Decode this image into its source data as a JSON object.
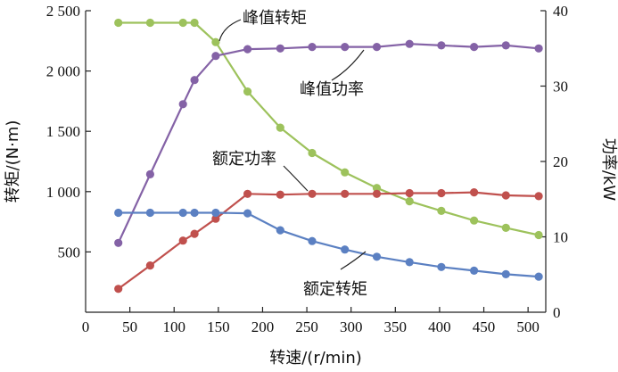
{
  "chart_data": {
    "type": "line",
    "xlabel": "转速/(r/min)",
    "ylabel_left": "转矩/(N·m)",
    "ylabel_right": "功率/kW",
    "xlim": [
      0,
      520
    ],
    "ylim_left": [
      0,
      2500
    ],
    "ylim_right": [
      0,
      40
    ],
    "x_ticks": [
      0,
      50,
      100,
      150,
      200,
      250,
      300,
      350,
      400,
      450,
      500
    ],
    "y_left_ticks": [
      500,
      1000,
      1500,
      2000,
      2500
    ],
    "y_left_tick_labels": [
      "500",
      "1 000",
      "1 500",
      "2 000",
      "2 500"
    ],
    "y_right_ticks": [
      0,
      10,
      20,
      30,
      40
    ],
    "grid": false,
    "series": [
      {
        "name": "峰值转矩",
        "axis": "left",
        "color": "#9dc25c",
        "x": [
          37,
          73,
          110,
          123,
          147,
          183,
          220,
          256,
          293,
          329,
          366,
          402,
          439,
          475,
          512
        ],
        "values": [
          2400,
          2400,
          2400,
          2400,
          2240,
          1830,
          1530,
          1320,
          1160,
          1030,
          920,
          840,
          760,
          700,
          640
        ]
      },
      {
        "name": "峰值功率",
        "axis": "right",
        "color": "#8462a6",
        "x": [
          37,
          73,
          110,
          123,
          147,
          183,
          220,
          256,
          293,
          329,
          366,
          402,
          439,
          475,
          512
        ],
        "values": [
          9.2,
          18.3,
          27.6,
          30.8,
          34.0,
          34.9,
          35.0,
          35.2,
          35.2,
          35.2,
          35.6,
          35.4,
          35.2,
          35.4,
          35.0
        ]
      },
      {
        "name": "额定功率",
        "axis": "right",
        "color": "#c0504d",
        "x": [
          37,
          73,
          110,
          123,
          147,
          183,
          220,
          256,
          293,
          329,
          366,
          402,
          439,
          475,
          512
        ],
        "values": [
          3.1,
          6.2,
          9.5,
          10.4,
          12.4,
          15.7,
          15.6,
          15.7,
          15.7,
          15.7,
          15.8,
          15.8,
          15.9,
          15.5,
          15.4
        ]
      },
      {
        "name": "额定转矩",
        "axis": "left",
        "color": "#5b80c2",
        "x": [
          37,
          73,
          110,
          123,
          147,
          183,
          220,
          256,
          293,
          329,
          366,
          402,
          439,
          475,
          512
        ],
        "values": [
          825,
          825,
          825,
          825,
          825,
          820,
          680,
          590,
          520,
          460,
          415,
          375,
          345,
          315,
          295
        ]
      }
    ],
    "annotations": [
      {
        "text": "峰值转矩",
        "series": "峰值转矩"
      },
      {
        "text": "峰值功率",
        "series": "峰值功率"
      },
      {
        "text": "额定功率",
        "series": "额定功率"
      },
      {
        "text": "额定转矩",
        "series": "额定转矩"
      }
    ]
  }
}
